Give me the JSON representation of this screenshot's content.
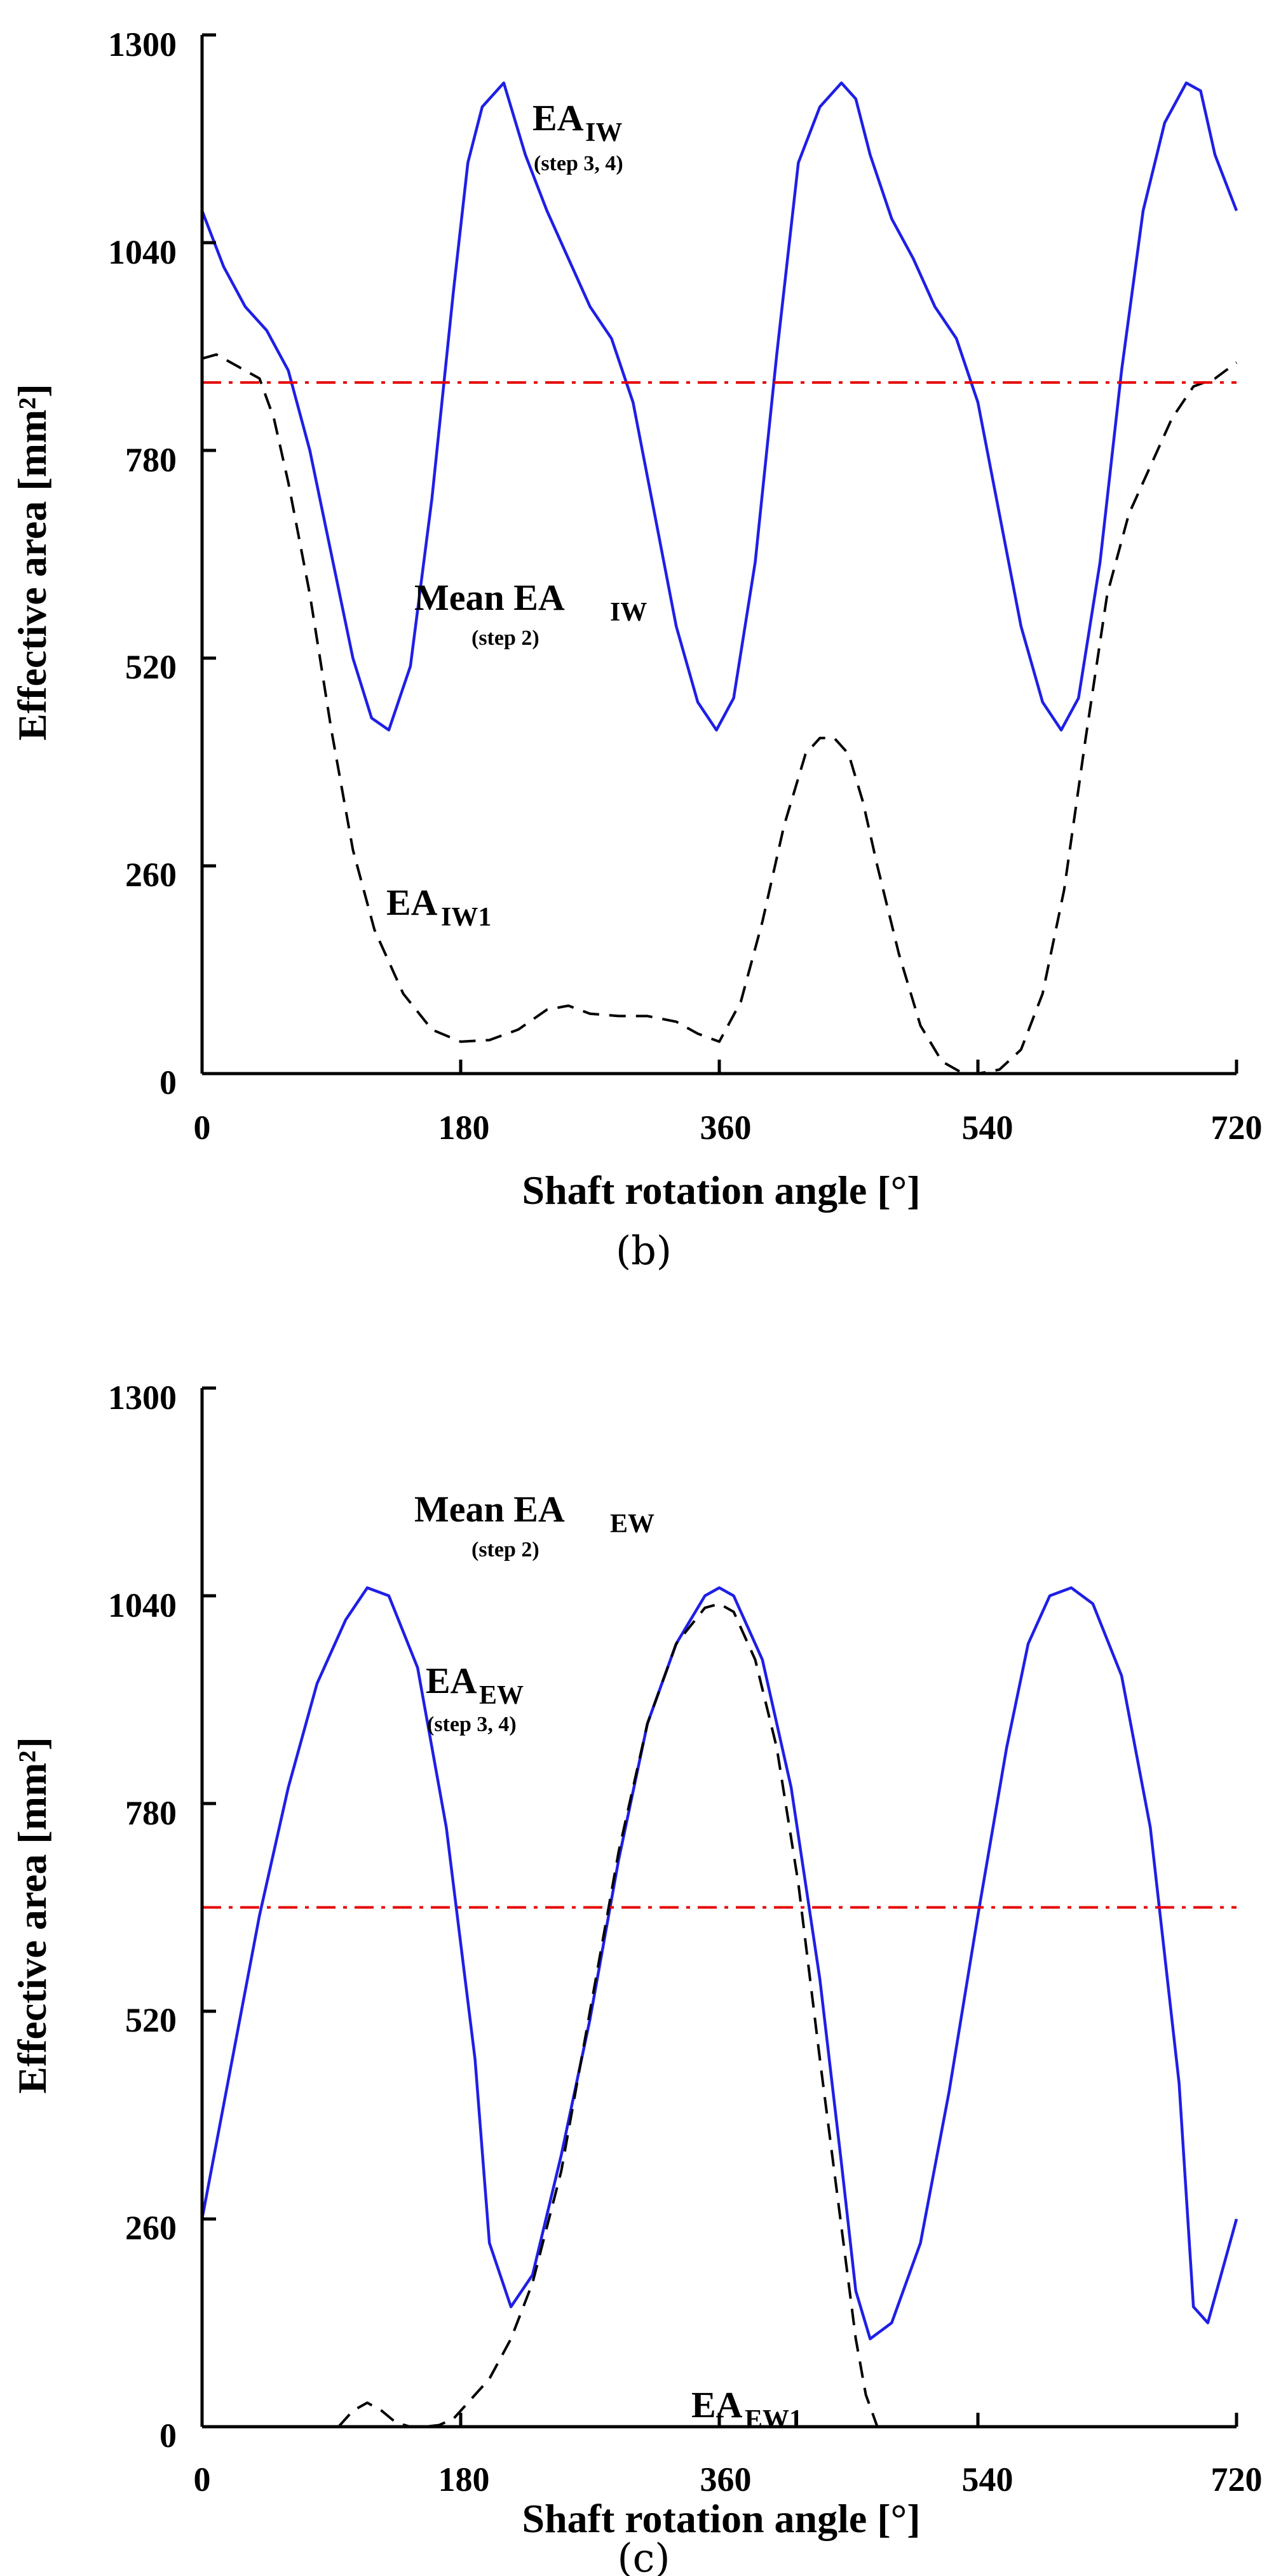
{
  "chart_data": [
    {
      "type": "line",
      "panel_label": "(b)",
      "xlabel": "Shaft rotation angle [°]",
      "ylabel": "Effective area [mm²]",
      "xlim": [
        0,
        720
      ],
      "ylim": [
        0,
        1300
      ],
      "xticks": [
        0,
        180,
        360,
        540,
        720
      ],
      "yticks": [
        0,
        260,
        520,
        780,
        1040,
        1300
      ],
      "xtick_labels": [
        "0",
        "180",
        "360",
        "540",
        "720"
      ],
      "ytick_labels": [
        "0",
        "260",
        "520",
        "780",
        1040,
        "1300"
      ],
      "series": [
        {
          "name": "EA_IW (step 3, 4)",
          "color": "#1f1fe6",
          "style": "solid",
          "x": [
            0,
            15,
            30,
            45,
            60,
            75,
            90,
            105,
            118,
            130,
            145,
            160,
            175,
            185,
            195,
            210,
            225,
            240,
            255,
            270,
            285,
            300,
            315,
            330,
            345,
            358,
            370,
            385,
            400,
            415,
            430,
            445,
            455,
            465,
            480,
            495,
            510,
            525,
            540,
            555,
            570,
            585,
            598,
            610,
            625,
            640,
            655,
            670,
            685,
            695,
            705,
            720
          ],
          "y": [
            1080,
            1010,
            960,
            930,
            880,
            780,
            650,
            520,
            445,
            430,
            510,
            720,
            980,
            1140,
            1210,
            1240,
            1150,
            1080,
            1020,
            960,
            920,
            840,
            700,
            560,
            465,
            430,
            470,
            640,
            900,
            1140,
            1210,
            1240,
            1220,
            1150,
            1070,
            1020,
            960,
            920,
            840,
            700,
            560,
            465,
            430,
            470,
            640,
            880,
            1080,
            1190,
            1240,
            1230,
            1150,
            1080
          ]
        },
        {
          "name": "EA_IW1",
          "color": "#000000",
          "style": "dashed",
          "x": [
            0,
            10,
            25,
            40,
            50,
            60,
            75,
            90,
            105,
            120,
            140,
            160,
            180,
            200,
            220,
            240,
            255,
            270,
            290,
            310,
            330,
            345,
            360,
            375,
            390,
            405,
            420,
            430,
            440,
            450,
            460,
            470,
            485,
            500,
            515,
            530,
            540,
            555,
            570,
            585,
            600,
            615,
            630,
            645,
            660,
            675,
            690,
            705,
            720
          ],
          "y": [
            895,
            900,
            885,
            870,
            820,
            740,
            600,
            430,
            280,
            180,
            100,
            55,
            40,
            42,
            55,
            80,
            85,
            75,
            72,
            72,
            65,
            50,
            40,
            90,
            190,
            310,
            400,
            420,
            420,
            400,
            340,
            260,
            150,
            60,
            15,
            0,
            0,
            5,
            30,
            100,
            230,
            420,
            600,
            700,
            760,
            820,
            860,
            870,
            890
          ]
        },
        {
          "name": "Mean EA_IW (step 2)",
          "color": "#e60000",
          "style": "dashdot",
          "x": [
            0,
            720
          ],
          "y": [
            865,
            865
          ]
        }
      ],
      "annotations": [
        {
          "main": "EA",
          "sub": "IW",
          "step": "(step 3, 4)"
        },
        {
          "main": "Mean EA",
          "sub": "IW",
          "step": "(step 2)"
        },
        {
          "main": "EA",
          "sub": "IW1",
          "step": ""
        }
      ]
    },
    {
      "type": "line",
      "panel_label": "(c)",
      "xlabel": "Shaft rotation angle [°]",
      "ylabel": "Effective area [mm²]",
      "xlim": [
        0,
        720
      ],
      "ylim": [
        0,
        1300
      ],
      "xticks": [
        0,
        180,
        360,
        540,
        720
      ],
      "yticks": [
        0,
        260,
        520,
        780,
        1040,
        1300
      ],
      "xtick_labels": [
        "0",
        "180",
        "360",
        "540",
        "720"
      ],
      "ytick_labels": [
        "0",
        "260",
        "520",
        "780",
        "1040",
        "1300"
      ],
      "series": [
        {
          "name": "EA_EW (step 3, 4)",
          "color": "#1f1fe6",
          "style": "solid",
          "x": [
            0,
            20,
            40,
            60,
            80,
            100,
            115,
            130,
            150,
            170,
            190,
            200,
            215,
            230,
            250,
            270,
            290,
            310,
            330,
            350,
            360,
            370,
            390,
            410,
            430,
            445,
            455,
            465,
            480,
            500,
            520,
            540,
            560,
            575,
            590,
            605,
            620,
            640,
            660,
            680,
            690,
            700,
            720
          ],
          "y": [
            260,
            450,
            640,
            800,
            930,
            1010,
            1050,
            1040,
            950,
            750,
            460,
            230,
            150,
            190,
            340,
            510,
            710,
            880,
            980,
            1040,
            1050,
            1040,
            960,
            800,
            560,
            330,
            170,
            110,
            130,
            230,
            420,
            640,
            850,
            980,
            1040,
            1050,
            1030,
            940,
            750,
            430,
            150,
            130,
            260
          ]
        },
        {
          "name": "EA_EW1",
          "color": "#000000",
          "style": "dashed",
          "x": [
            95,
            105,
            115,
            125,
            135,
            145,
            155,
            165,
            175,
            185,
            200,
            215,
            230,
            250,
            270,
            290,
            310,
            330,
            350,
            360,
            370,
            385,
            400,
            415,
            430,
            445,
            455,
            462,
            470
          ],
          "y": [
            0,
            20,
            30,
            20,
            5,
            0,
            0,
            2,
            10,
            30,
            60,
            110,
            180,
            320,
            520,
            720,
            880,
            980,
            1025,
            1030,
            1020,
            960,
            850,
            680,
            460,
            250,
            110,
            40,
            0
          ]
        },
        {
          "name": "Mean EA_EW (step 2)",
          "color": "#e60000",
          "style": "dashdot",
          "x": [
            0,
            720
          ],
          "y": [
            650,
            650
          ]
        }
      ],
      "annotations": [
        {
          "main": "Mean EA",
          "sub": "EW",
          "step": "(step 2)"
        },
        {
          "main": "EA",
          "sub": "EW",
          "step": "(step 3, 4)"
        },
        {
          "main": "EA",
          "sub": "EW1",
          "step": ""
        }
      ]
    }
  ]
}
